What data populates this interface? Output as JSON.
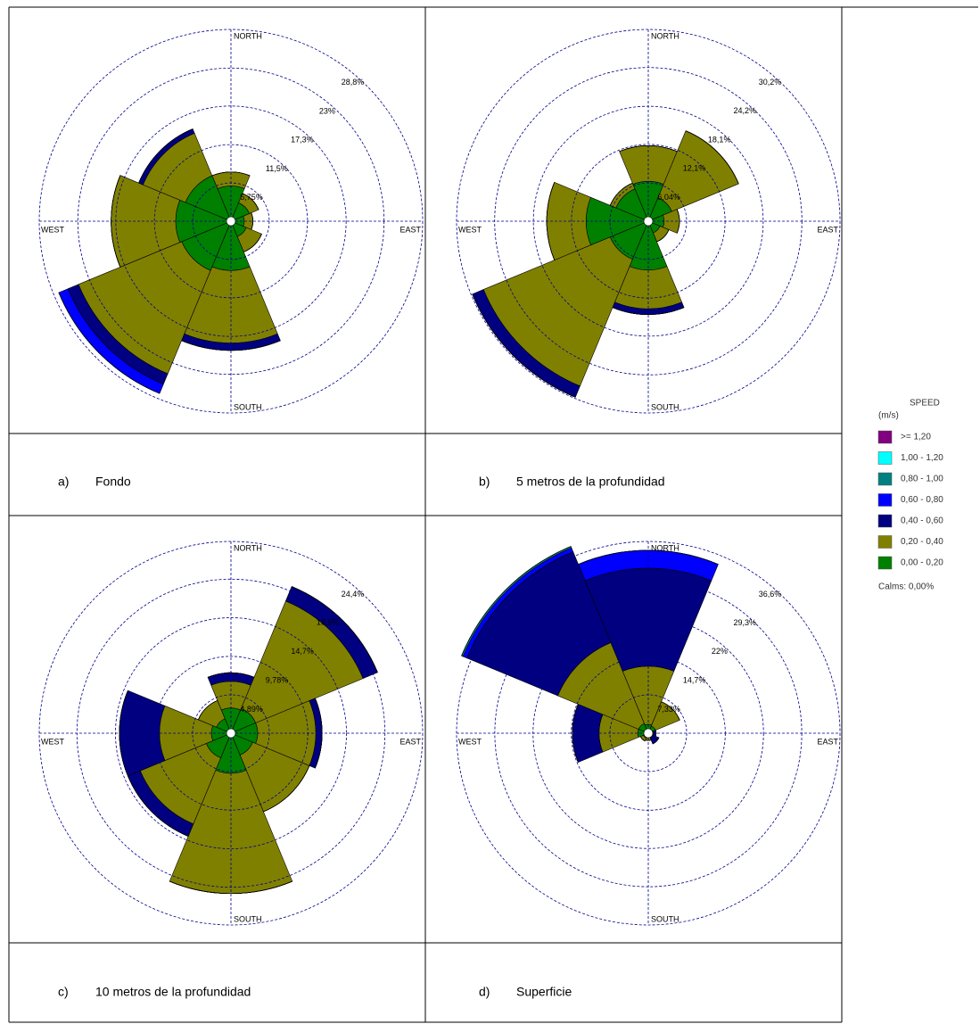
{
  "legend": {
    "title": "SPEED",
    "unit": "(m/s)",
    "calms": "Calms: 0,00%",
    "entries": [
      {
        "name": ">= 1,20",
        "color": "#800080"
      },
      {
        "name": "1,00 - 1,20",
        "color": "#00ffff"
      },
      {
        "name": "0,80 - 1,00",
        "color": "#008080"
      },
      {
        "name": "0,60 - 0,80",
        "color": "#0000ff"
      },
      {
        "name": "0,40 - 0,60",
        "color": "#000080"
      },
      {
        "name": "0,20 - 0,40",
        "color": "#808000"
      },
      {
        "name": "0,00 - 0,20",
        "color": "#008000"
      }
    ]
  },
  "chart_data": [
    {
      "type": "rose",
      "label": "a)",
      "title": "Fondo",
      "direction_labels": [
        "NORTH",
        "EAST",
        "SOUTH",
        "WEST"
      ],
      "rlim": [
        0,
        28.8
      ],
      "rticks": [
        {
          "value": 5.75,
          "label": "5,75%"
        },
        {
          "value": 11.5,
          "label": "11,5%"
        },
        {
          "value": 17.3,
          "label": "17,3%"
        },
        {
          "value": 23,
          "label": "23%"
        },
        {
          "value": 28.8,
          "label": "28,8%"
        }
      ],
      "series": [
        {
          "values": [
            0,
            0,
            0,
            0,
            0,
            0,
            0,
            0
          ]
        },
        {
          "values": [
            0,
            0,
            0,
            0,
            0,
            0,
            0,
            0
          ]
        },
        {
          "values": [
            0,
            0,
            0,
            0,
            0,
            0,
            0,
            0
          ]
        },
        {
          "values": [
            0,
            0,
            0,
            0,
            0,
            1.5,
            0,
            0
          ]
        },
        {
          "values": [
            0,
            0,
            0,
            0,
            1.1,
            1.7,
            0,
            0.7
          ]
        },
        {
          "values": [
            2.1,
            1.5,
            1.3,
            2.5,
            10.9,
            16.8,
            9.7,
            6.9
          ]
        },
        {
          "values": [
            5.3,
            3.0,
            2.0,
            2.5,
            7.4,
            8.0,
            8.3,
            7.4
          ]
        }
      ]
    },
    {
      "type": "rose",
      "label": "b)",
      "title": "5 metros de la profundidad",
      "direction_labels": [
        "NORTH",
        "EAST",
        "SOUTH",
        "WEST"
      ],
      "rlim": [
        0,
        30.2
      ],
      "rticks": [
        {
          "value": 6.04,
          "label": "6,04%"
        },
        {
          "value": 12.1,
          "label": "12,1%"
        },
        {
          "value": 18.1,
          "label": "18,1%"
        },
        {
          "value": 24.2,
          "label": "24,2%"
        },
        {
          "value": 30.2,
          "label": "30,2%"
        }
      ],
      "series": [
        {
          "values": [
            0,
            0,
            0,
            0,
            0,
            0,
            0,
            0
          ]
        },
        {
          "values": [
            0,
            0,
            0,
            0,
            0,
            0,
            0,
            0
          ]
        },
        {
          "values": [
            0,
            0,
            0,
            0,
            0,
            0,
            0,
            0
          ]
        },
        {
          "values": [
            0,
            0,
            0,
            0,
            0,
            0,
            0,
            0
          ]
        },
        {
          "values": [
            0,
            0,
            0,
            0,
            0.9,
            1.9,
            0,
            0
          ]
        },
        {
          "values": [
            5.6,
            11.4,
            2.4,
            1.5,
            6.1,
            21.6,
            6.2,
            1.0
          ]
        },
        {
          "values": [
            6.3,
            4.0,
            2.5,
            2.0,
            7.7,
            6.5,
            9.8,
            5.5
          ]
        }
      ]
    },
    {
      "type": "rose",
      "label": "c)",
      "title": "10 metros de la profundidad",
      "direction_labels": [
        "NORTH",
        "EAST",
        "SOUTH",
        "WEST"
      ],
      "rlim": [
        0,
        24.4
      ],
      "rticks": [
        {
          "value": 4.89,
          "label": "4,89%"
        },
        {
          "value": 9.78,
          "label": "9,78%"
        },
        {
          "value": 14.7,
          "label": "14,7%"
        },
        {
          "value": 19.6,
          "label": "19,6%"
        },
        {
          "value": 24.4,
          "label": "24,4%"
        }
      ],
      "series": [
        {
          "values": [
            0,
            0,
            0,
            0,
            0,
            0,
            0,
            0
          ]
        },
        {
          "values": [
            0,
            0,
            0,
            0,
            0,
            0,
            0,
            0
          ]
        },
        {
          "values": [
            0,
            0,
            0,
            0,
            0,
            0,
            0,
            0
          ]
        },
        {
          "values": [
            0,
            0,
            0,
            0,
            0,
            0,
            0,
            0
          ]
        },
        {
          "values": [
            1.1,
            2.0,
            0.8,
            0,
            0,
            1.7,
            5.1,
            0
          ]
        },
        {
          "values": [
            3.4,
            14.8,
            7.4,
            7.8,
            15.3,
            9.1,
            6.6,
            2.5
          ]
        },
        {
          "values": [
            3.2,
            3.4,
            3.4,
            3.0,
            5.1,
            3.4,
            2.5,
            2.0
          ]
        }
      ]
    },
    {
      "type": "rose",
      "label": "d)",
      "title": "Superficie",
      "direction_labels": [
        "NORTH",
        "EAST",
        "SOUTH",
        "WEST"
      ],
      "rlim": [
        0,
        36.6
      ],
      "rticks": [
        {
          "value": 7.33,
          "label": "7,33%"
        },
        {
          "value": 14.7,
          "label": "14,7%"
        },
        {
          "value": 22,
          "label": "22%"
        },
        {
          "value": 29.3,
          "label": "29,3%"
        },
        {
          "value": 36.6,
          "label": "36,6%"
        }
      ],
      "series": [
        {
          "values": [
            0,
            0,
            0,
            0,
            0,
            0,
            0,
            0
          ]
        },
        {
          "values": [
            0,
            0,
            0,
            0,
            0,
            0,
            0,
            0
          ]
        },
        {
          "values": [
            0,
            0,
            0,
            0,
            0,
            0,
            0,
            0.3
          ]
        },
        {
          "values": [
            3.4,
            0,
            0,
            0,
            0,
            0,
            0,
            0.8
          ]
        },
        {
          "values": [
            18.7,
            0,
            0.5,
            1.2,
            0,
            0,
            5.1,
            18.8
          ]
        },
        {
          "values": [
            11.1,
            5.0,
            0,
            0,
            0.6,
            0.6,
            7.4,
            16.7
          ]
        },
        {
          "values": [
            1.7,
            1.5,
            1.0,
            1.0,
            0.8,
            1.0,
            2.0,
            2.0
          ]
        }
      ]
    }
  ]
}
